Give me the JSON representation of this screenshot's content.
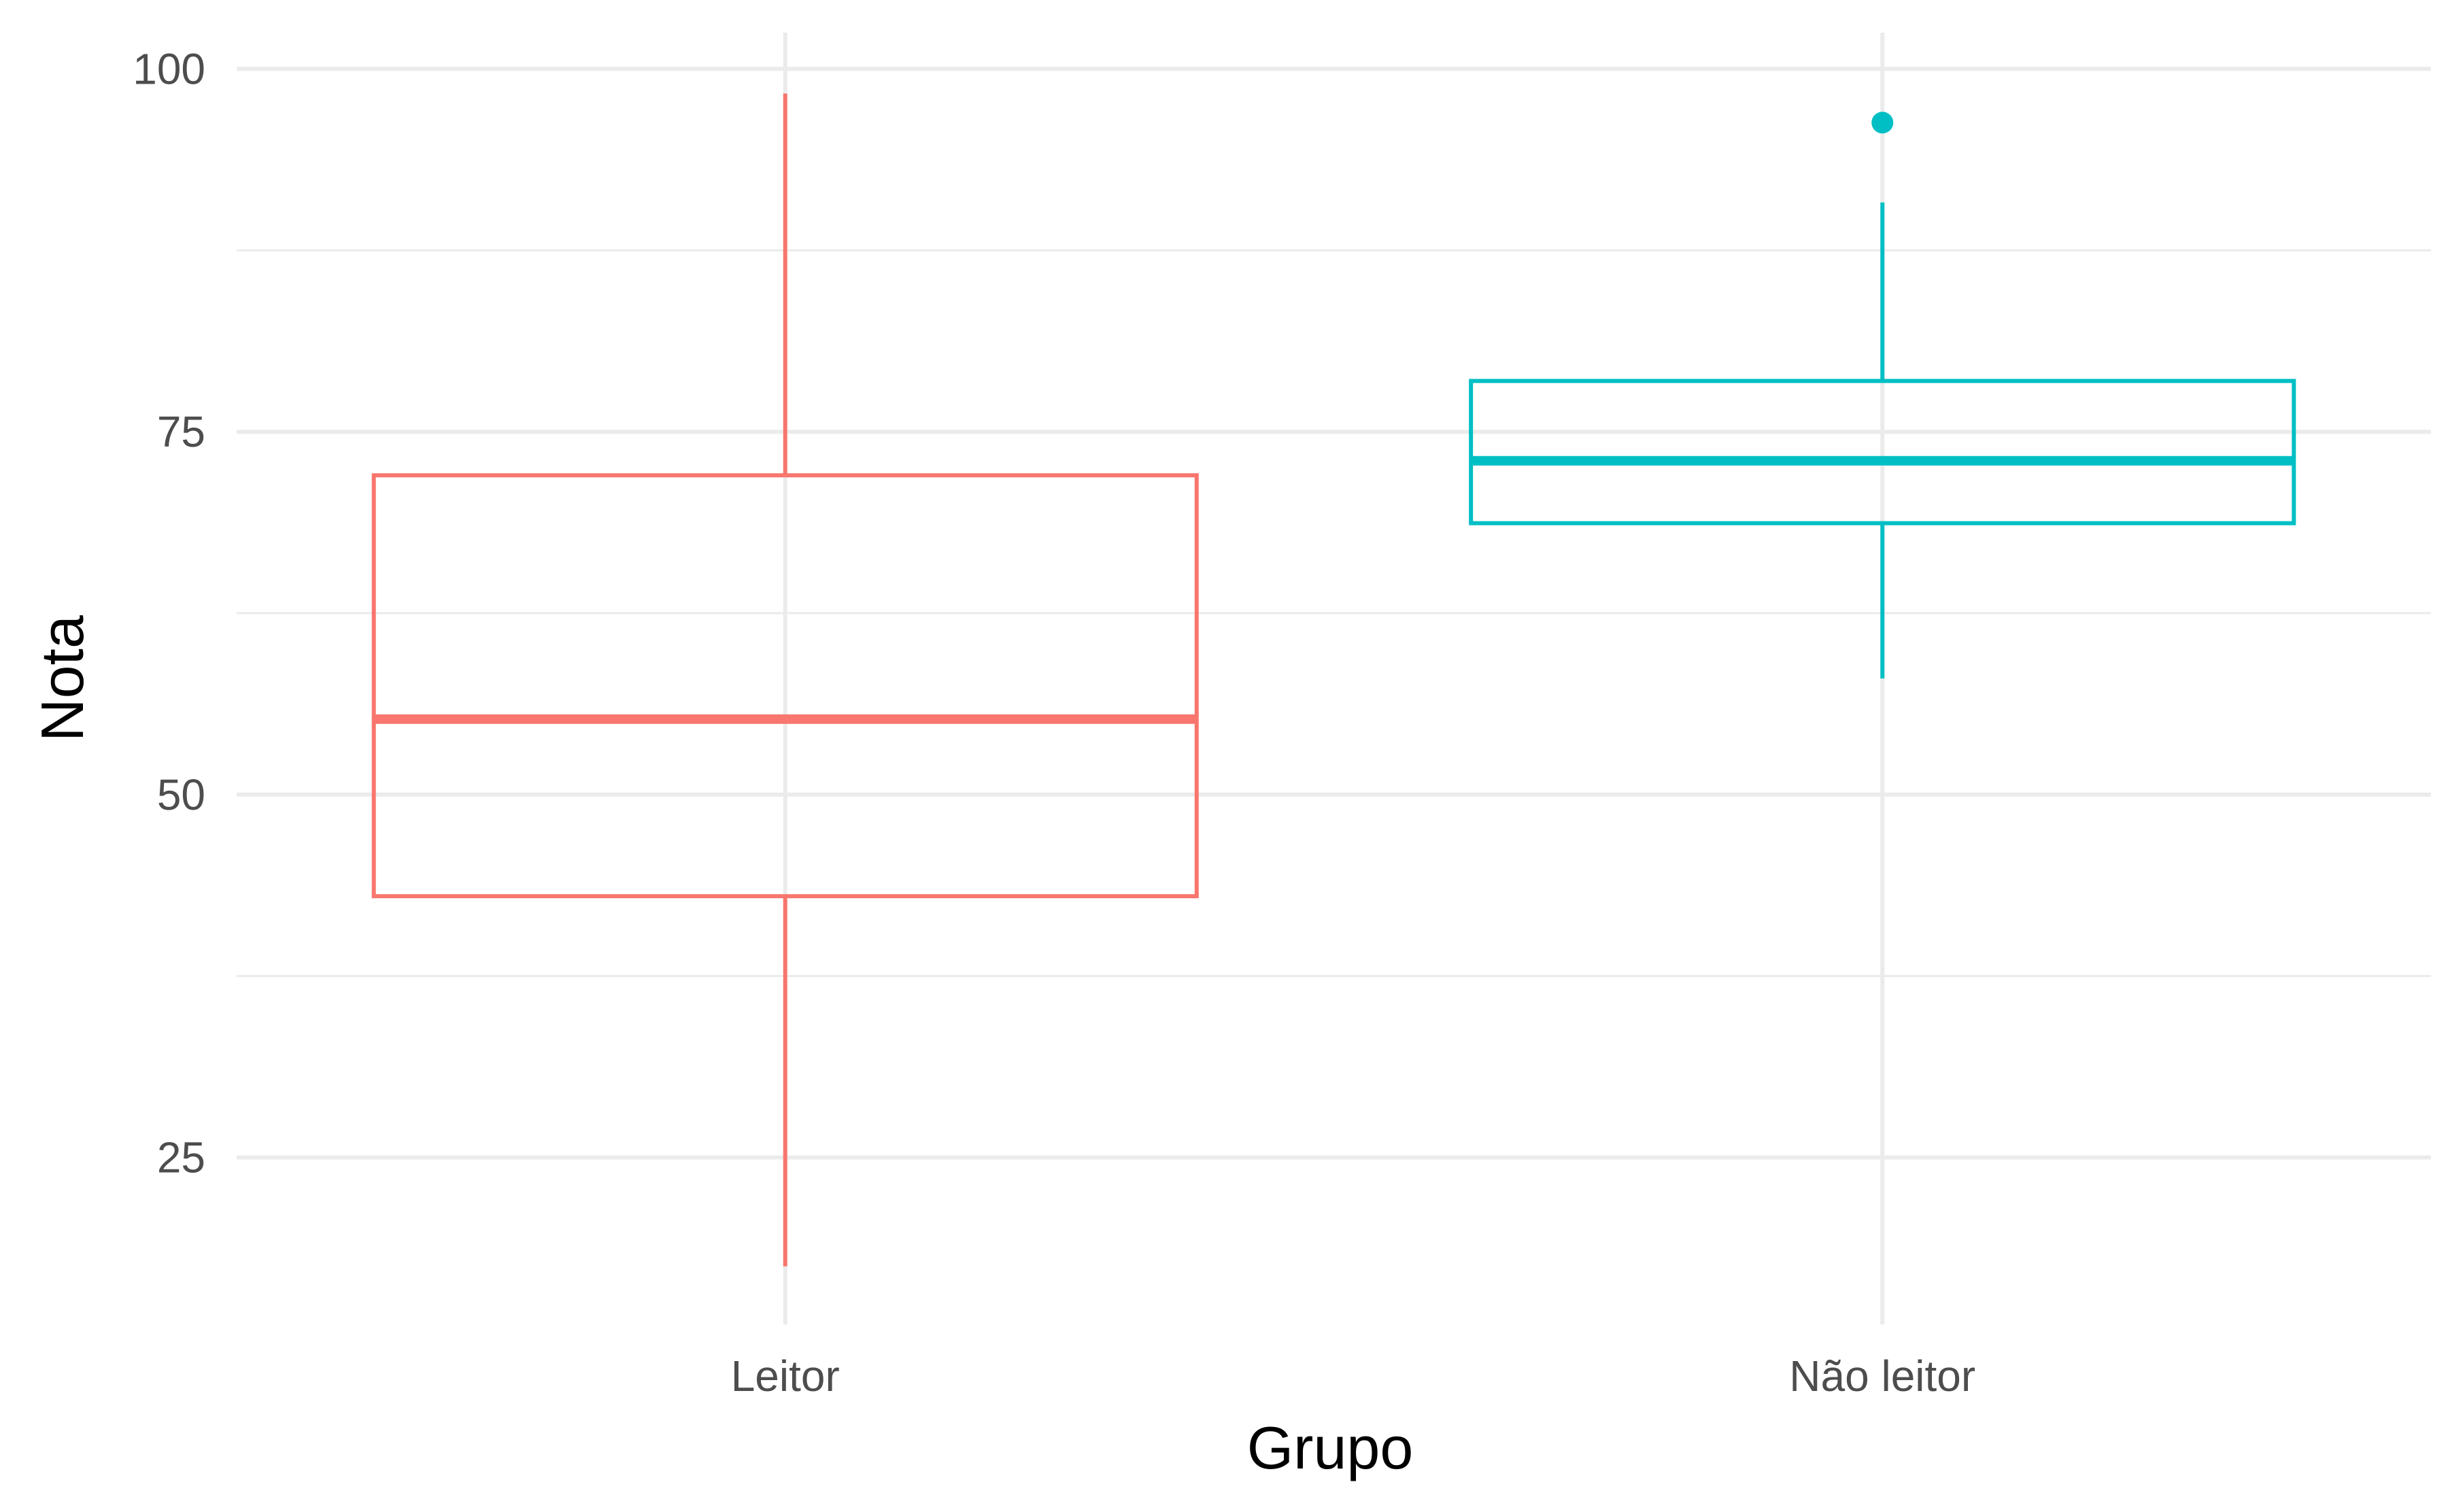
{
  "chart_data": {
    "type": "boxplot",
    "xlabel": "Grupo",
    "ylabel": "Nota",
    "categories": [
      "Leitor",
      "Não leitor"
    ],
    "ylim": [
      13.5,
      102.5
    ],
    "yticks": [
      25,
      50,
      75,
      100
    ],
    "yticks_labels": [
      "25",
      "50",
      "75",
      "100"
    ],
    "minor_yticks": [
      37.5,
      62.5,
      87.5
    ],
    "grid": true,
    "legend": "none",
    "boxes": [
      {
        "category": "Leitor",
        "color": "#F8766D",
        "whisker_low": 17.5,
        "q1": 43,
        "median": 55.2,
        "q3": 72,
        "whisker_high": 98.3,
        "outliers": []
      },
      {
        "category": "Não leitor",
        "color": "#00BFC4",
        "whisker_low": 58,
        "q1": 68.7,
        "median": 73,
        "q3": 78.5,
        "whisker_high": 90.8,
        "outliers": [
          96.3
        ]
      }
    ]
  }
}
